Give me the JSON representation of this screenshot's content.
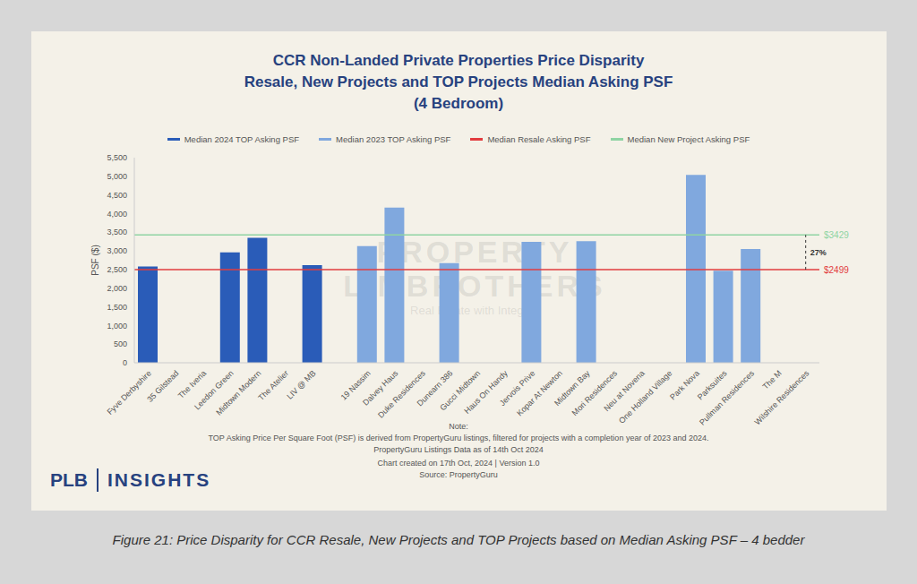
{
  "chart_data": {
    "type": "bar",
    "title": [
      "CCR Non-Landed Private Properties Price Disparity",
      "Resale, New Projects and TOP Projects Median Asking PSF",
      "(4 Bedroom)"
    ],
    "y_label": "PSF ($)",
    "categories": [
      "Fyve Derbyshire",
      "35 Gilstead",
      "The Iveria",
      "Leedon Green",
      "Midtown Modern",
      "The Atelier",
      "LIV @ MB",
      null,
      "19 Nassim",
      "Dalvey Haus",
      "Duke Residences",
      "Dunearn 386",
      "Gucci Midtown",
      "Haus On Handy",
      "Jervois Prive",
      "Kopar At Newton",
      "Midtown Bay",
      "Mori Residences",
      "Neu at Novena",
      "One Holland Village",
      "Park Nova",
      "Parksuites",
      "Pullman Residences",
      "The M",
      "Wilshire Residences"
    ],
    "series": [
      {
        "name": "Median 2024 TOP Asking PSF",
        "color": "#2a5cb8",
        "values": [
          2580,
          null,
          null,
          2960,
          3350,
          null,
          2620,
          null,
          null,
          null,
          null,
          null,
          null,
          null,
          null,
          null,
          null,
          null,
          null,
          null,
          null,
          null,
          null,
          null,
          null
        ]
      },
      {
        "name": "Median 2023 TOP Asking PSF",
        "color": "#80a8de",
        "values": [
          null,
          null,
          null,
          null,
          null,
          null,
          null,
          null,
          3130,
          4160,
          null,
          2670,
          null,
          null,
          3240,
          null,
          3260,
          null,
          null,
          null,
          5040,
          2470,
          3050,
          null,
          null
        ]
      }
    ],
    "reference_lines": [
      {
        "name": "Median Resale Asking PSF",
        "value": 2499,
        "label": "$2499",
        "color": "#e23c3f"
      },
      {
        "name": "Median New Project Asking PSF",
        "value": 3429,
        "label": "$3429",
        "color": "#8fd4a3"
      }
    ],
    "annotations": [
      "27%"
    ],
    "ylim": [
      0,
      5500
    ],
    "yticks": [
      0,
      500,
      {
        "value": 1000,
        "label": "1,000"
      },
      {
        "value": 1500,
        "label": "1,500"
      },
      {
        "value": 2000,
        "label": "2,000"
      },
      {
        "value": 2500,
        "label": "2,500"
      },
      {
        "value": 3000,
        "label": "3,000"
      },
      {
        "value": 3500,
        "label": "3,500"
      },
      {
        "value": 4000,
        "label": "4,000"
      },
      {
        "value": 4500,
        "label": "4,500"
      },
      {
        "value": 5000,
        "label": "5,000"
      },
      {
        "value": 5500,
        "label": "5,500"
      }
    ],
    "grid": false,
    "legend": "top"
  },
  "notes": [
    "Note:",
    "TOP Asking Price Per Square Foot (PSF) is derived from PropertyGuru listings, filtered for projects with a completion year of 2023 and 2024.",
    "PropertyGuru Listings Data as of 14th Oct 2024",
    "Chart created on 17th Oct, 2024 | Version 1.0",
    "Source: PropertyGuru"
  ],
  "branding": {
    "logo": [
      "PLB",
      "INSIGHTS"
    ],
    "watermark": [
      "PROPERTY",
      "LIMBROTHERS",
      "Real Estate with Integrity"
    ]
  },
  "caption": "Figure 21: Price Disparity for CCR Resale, New Projects and TOP Projects based on Median Asking PSF – 4 bedder"
}
